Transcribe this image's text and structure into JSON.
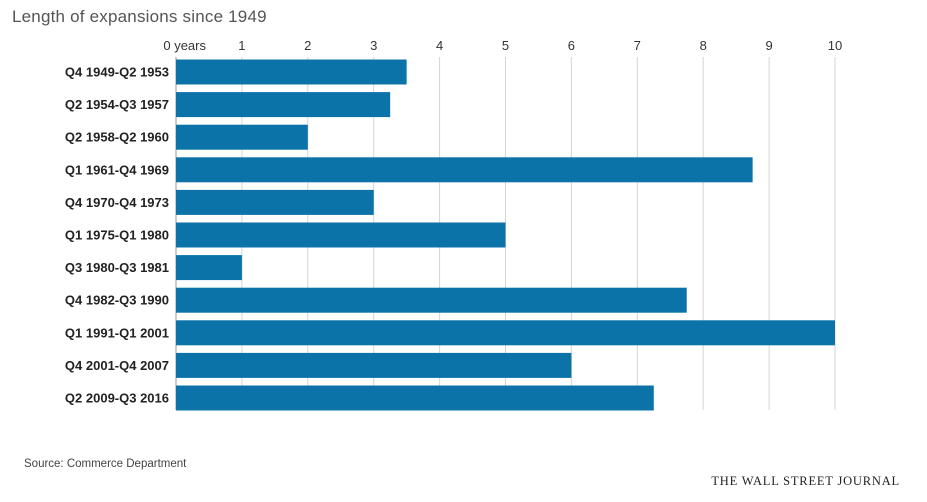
{
  "title": "Length of expansions since 1949",
  "source": "Source: Commerce Department",
  "brand": "THE WALL STREET JOURNAL",
  "chart_data": {
    "type": "bar",
    "orientation": "horizontal",
    "title": "Length of expansions since 1949",
    "xlabel": "",
    "ylabel": "",
    "xlim": [
      0,
      10
    ],
    "x_ticks": [
      "0 years",
      "1",
      "2",
      "3",
      "4",
      "5",
      "6",
      "7",
      "8",
      "9",
      "10"
    ],
    "x_tick_values": [
      0,
      1,
      2,
      3,
      4,
      5,
      6,
      7,
      8,
      9,
      10
    ],
    "grid": "vertical",
    "axis_position": "top",
    "bar_color": "#0b73a8",
    "categories": [
      "Q4 1949-Q2 1953",
      "Q2 1954-Q3 1957",
      "Q2 1958-Q2 1960",
      "Q1 1961-Q4 1969",
      "Q4 1970-Q4 1973",
      "Q1 1975-Q1 1980",
      "Q3 1980-Q3 1981",
      "Q4 1982-Q3 1990",
      "Q1 1991-Q1 2001",
      "Q4 2001-Q4 2007",
      "Q2 2009-Q3 2016"
    ],
    "values": [
      3.5,
      3.25,
      2.0,
      8.75,
      3.0,
      5.0,
      1.0,
      7.75,
      10.0,
      6.0,
      7.25
    ]
  }
}
